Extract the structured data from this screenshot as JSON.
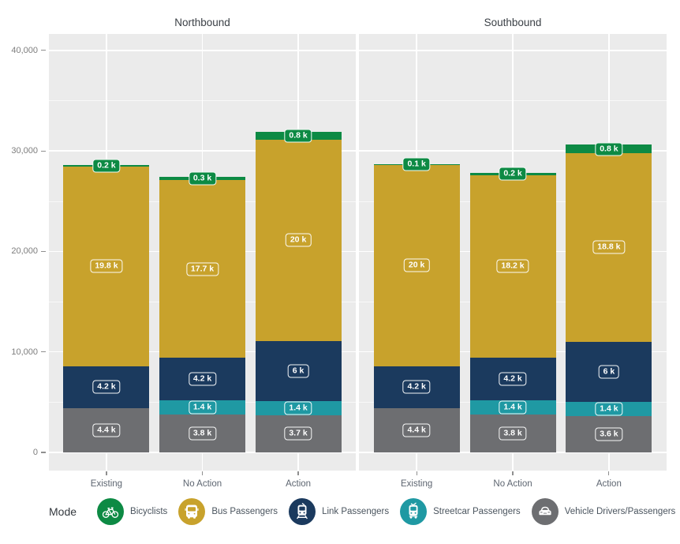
{
  "chart_data": {
    "type": "bar",
    "stacked": true,
    "title": "",
    "xlabel": "",
    "ylabel": "",
    "ylim": [
      0,
      41600
    ],
    "yticks": [
      0,
      10000,
      20000,
      30000,
      40000
    ],
    "ytick_labels": [
      "0",
      "10,000",
      "20,000",
      "30,000",
      "40,000"
    ],
    "minor_yticks": [
      5000,
      15000,
      25000,
      35000
    ],
    "grid": true,
    "legend_position": "bottom",
    "legend_title": "Mode",
    "categories": [
      "Existing",
      "No Action",
      "Action"
    ],
    "modes": [
      {
        "name": "Bicyclists",
        "color": "#0d8a44",
        "icon": "bicycle-icon"
      },
      {
        "name": "Bus Passengers",
        "color": "#c8a22c",
        "icon": "bus-icon"
      },
      {
        "name": "Link Passengers",
        "color": "#1b3a5e",
        "icon": "link-train-icon"
      },
      {
        "name": "Streetcar Passengers",
        "color": "#1f99a3",
        "icon": "streetcar-icon"
      },
      {
        "name": "Vehicle Drivers/Passengers",
        "color": "#6d6e71",
        "icon": "car-icon"
      }
    ],
    "stack_order": [
      "Vehicle Drivers/Passengers",
      "Streetcar Passengers",
      "Link Passengers",
      "Bus Passengers",
      "Bicyclists"
    ],
    "facets": [
      {
        "title": "Northbound",
        "bars": [
          {
            "category": "Existing",
            "segments": [
              {
                "mode": "Vehicle Drivers/Passengers",
                "value": 4400,
                "label": "4.4 k"
              },
              {
                "mode": "Link Passengers",
                "value": 4200,
                "label": "4.2 k"
              },
              {
                "mode": "Bus Passengers",
                "value": 19800,
                "label": "19.8 k"
              },
              {
                "mode": "Bicyclists",
                "value": 200,
                "label": "0.2 k"
              }
            ]
          },
          {
            "category": "No Action",
            "segments": [
              {
                "mode": "Vehicle Drivers/Passengers",
                "value": 3800,
                "label": "3.8 k"
              },
              {
                "mode": "Streetcar Passengers",
                "value": 1400,
                "label": "1.4 k"
              },
              {
                "mode": "Link Passengers",
                "value": 4200,
                "label": "4.2 k"
              },
              {
                "mode": "Bus Passengers",
                "value": 17700,
                "label": "17.7 k"
              },
              {
                "mode": "Bicyclists",
                "value": 300,
                "label": "0.3 k"
              }
            ]
          },
          {
            "category": "Action",
            "segments": [
              {
                "mode": "Vehicle Drivers/Passengers",
                "value": 3700,
                "label": "3.7 k"
              },
              {
                "mode": "Streetcar Passengers",
                "value": 1400,
                "label": "1.4 k"
              },
              {
                "mode": "Link Passengers",
                "value": 6000,
                "label": "6 k"
              },
              {
                "mode": "Bus Passengers",
                "value": 20000,
                "label": "20 k"
              },
              {
                "mode": "Bicyclists",
                "value": 800,
                "label": "0.8 k"
              }
            ]
          }
        ]
      },
      {
        "title": "Southbound",
        "bars": [
          {
            "category": "Existing",
            "segments": [
              {
                "mode": "Vehicle Drivers/Passengers",
                "value": 4400,
                "label": "4.4 k"
              },
              {
                "mode": "Link Passengers",
                "value": 4200,
                "label": "4.2 k"
              },
              {
                "mode": "Bus Passengers",
                "value": 20000,
                "label": "20 k"
              },
              {
                "mode": "Bicyclists",
                "value": 100,
                "label": "0.1 k"
              }
            ]
          },
          {
            "category": "No Action",
            "segments": [
              {
                "mode": "Vehicle Drivers/Passengers",
                "value": 3800,
                "label": "3.8 k"
              },
              {
                "mode": "Streetcar Passengers",
                "value": 1400,
                "label": "1.4 k"
              },
              {
                "mode": "Link Passengers",
                "value": 4200,
                "label": "4.2 k"
              },
              {
                "mode": "Bus Passengers",
                "value": 18200,
                "label": "18.2 k"
              },
              {
                "mode": "Bicyclists",
                "value": 200,
                "label": "0.2 k"
              }
            ]
          },
          {
            "category": "Action",
            "segments": [
              {
                "mode": "Vehicle Drivers/Passengers",
                "value": 3600,
                "label": "3.6 k"
              },
              {
                "mode": "Streetcar Passengers",
                "value": 1400,
                "label": "1.4 k"
              },
              {
                "mode": "Link Passengers",
                "value": 6000,
                "label": "6 k"
              },
              {
                "mode": "Bus Passengers",
                "value": 18800,
                "label": "18.8 k"
              },
              {
                "mode": "Bicyclists",
                "value": 800,
                "label": "0.8 k"
              }
            ]
          }
        ]
      }
    ]
  },
  "palette": {
    "panel_background": "#ebebeb",
    "gridline": "#ffffff",
    "axis_text": "#7d7d7d",
    "category_text": "#5d6570",
    "facet_title_text": "#3b4046"
  }
}
